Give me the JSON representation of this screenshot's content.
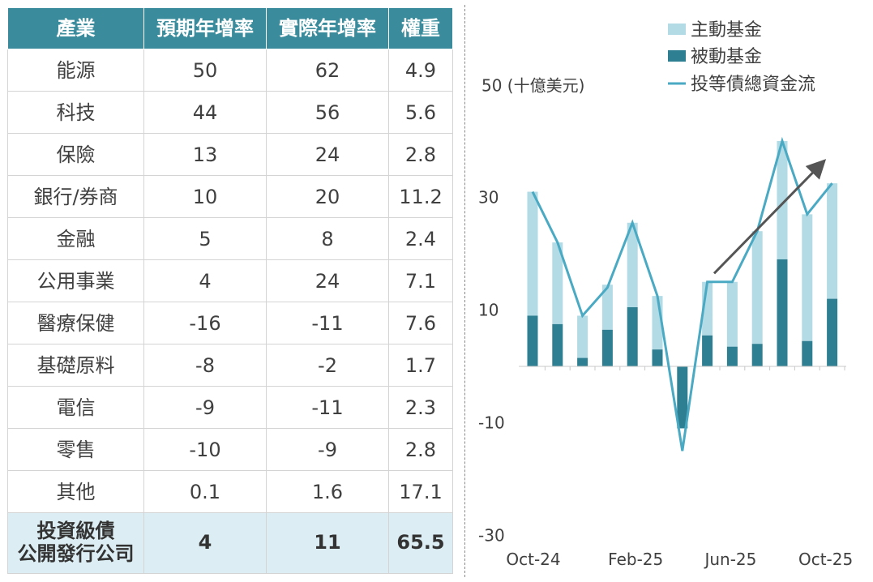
{
  "table": {
    "headers": [
      "產業",
      "預期年增率",
      "實際年增率",
      "權重"
    ],
    "rows": [
      [
        "能源",
        "50",
        "62",
        "4.9"
      ],
      [
        "科技",
        "44",
        "56",
        "5.6"
      ],
      [
        "保險",
        "13",
        "24",
        "2.8"
      ],
      [
        "銀行/券商",
        "10",
        "20",
        "11.2"
      ],
      [
        "金融",
        "5",
        "8",
        "2.4"
      ],
      [
        "公用事業",
        "4",
        "24",
        "7.1"
      ],
      [
        "醫療保健",
        "-16",
        "-11",
        "7.6"
      ],
      [
        "基礎原料",
        "-8",
        "-2",
        "1.7"
      ],
      [
        "電信",
        "-9",
        "-11",
        "2.3"
      ],
      [
        "零售",
        "-10",
        "-9",
        "2.8"
      ],
      [
        "其他",
        "0.1",
        "1.6",
        "17.1"
      ]
    ],
    "total": {
      "label_line1": "投資級債",
      "label_line2": "公開發行公司",
      "expected": "4",
      "actual": "11",
      "weight": "65.5"
    }
  },
  "chart_data": {
    "type": "bar",
    "stacked": true,
    "unit_label": "50 (十億美元)",
    "x_tick_labels": [
      "Oct-24",
      "Feb-25",
      "Jun-25",
      "Oct-25"
    ],
    "y_ticks": [
      30,
      10,
      -10,
      -30
    ],
    "ylim": [
      -30,
      50
    ],
    "categories": [
      "Oct-24",
      "Nov-24",
      "Dec-24",
      "Jan-25",
      "Feb-25",
      "Mar-25",
      "Apr-25",
      "May-25",
      "Jun-25",
      "Jul-25",
      "Aug-25",
      "Sep-25",
      "Oct-25"
    ],
    "series": [
      {
        "name": "被動基金",
        "type": "bar",
        "color": "#2e7f92",
        "values": [
          9,
          7.5,
          1.5,
          6.5,
          10.5,
          3,
          -11,
          5.5,
          3.5,
          4,
          19,
          4.5,
          12
        ]
      },
      {
        "name": "主動基金",
        "type": "bar",
        "color": "#b2dbe6",
        "values": [
          22,
          14.5,
          7.5,
          8,
          15,
          9.5,
          0,
          9.5,
          11.5,
          20,
          21,
          22.5,
          20.5
        ]
      },
      {
        "name": "投等債總資金流",
        "type": "line",
        "color": "#4aaac3",
        "values": [
          31,
          22,
          9,
          14,
          25.5,
          12.5,
          -15,
          15,
          15,
          24,
          40,
          27,
          32.5
        ]
      }
    ],
    "legend_position": "top-right",
    "annotation": "upward-trend-arrow",
    "grid": false
  }
}
